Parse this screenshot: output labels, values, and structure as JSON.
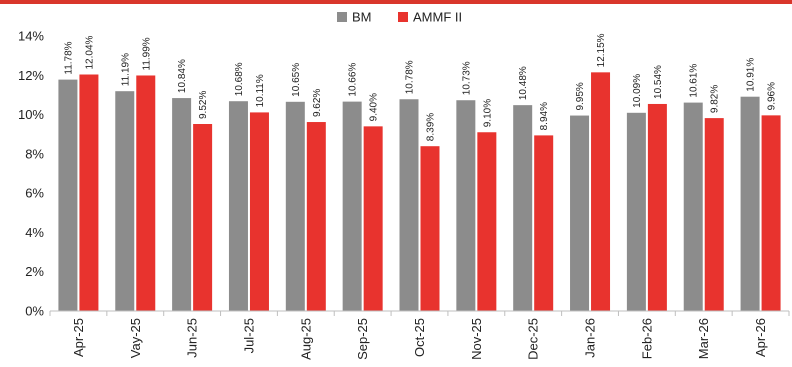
{
  "colors": {
    "top_bar": "#d9362b",
    "bm": "#8c8c8c",
    "ammf": "#e8332e",
    "axis": "#bfbfbf"
  },
  "chart_data": {
    "type": "bar",
    "categories": [
      "Apr-25",
      "Vay-25",
      "Jun-25",
      "Jul-25",
      "Aug-25",
      "Sep-25",
      "Oct-25",
      "Nov-25",
      "Dec-25",
      "Jan-26",
      "Feb-26",
      "Mar-26",
      "Apr-26"
    ],
    "series": [
      {
        "name": "BM",
        "color": "#8c8c8c",
        "values": [
          11.78,
          11.19,
          10.84,
          10.68,
          10.65,
          10.66,
          10.78,
          10.73,
          10.48,
          9.95,
          10.09,
          10.61,
          10.91
        ],
        "labels": [
          "11.78%",
          "11.19%",
          "10.84%",
          "10.68%",
          "10.65%",
          "10.66%",
          "10.78%",
          "10.73%",
          "10.48%",
          "9.95%",
          "10.09%",
          "10.61%",
          "10.91%"
        ]
      },
      {
        "name": "AMMF II",
        "color": "#e8332e",
        "values": [
          12.04,
          11.99,
          9.52,
          10.11,
          9.62,
          9.4,
          8.39,
          9.1,
          8.94,
          12.15,
          10.54,
          9.82,
          9.96
        ],
        "labels": [
          "12.04%",
          "11.99%",
          "9.52%",
          "10.11%",
          "9.62%",
          "9.40%",
          "8.39%",
          "9.10%",
          "8.94%",
          "12.15%",
          "10.54%",
          "9.82%",
          "9.96%"
        ]
      }
    ],
    "ylim": [
      0,
      14
    ],
    "yticks": [
      0,
      2,
      4,
      6,
      8,
      10,
      12,
      14
    ],
    "ytick_labels": [
      "0%",
      "2%",
      "4%",
      "6%",
      "8%",
      "10%",
      "12%",
      "14%"
    ],
    "legend_position": "top-center",
    "grid": false
  }
}
